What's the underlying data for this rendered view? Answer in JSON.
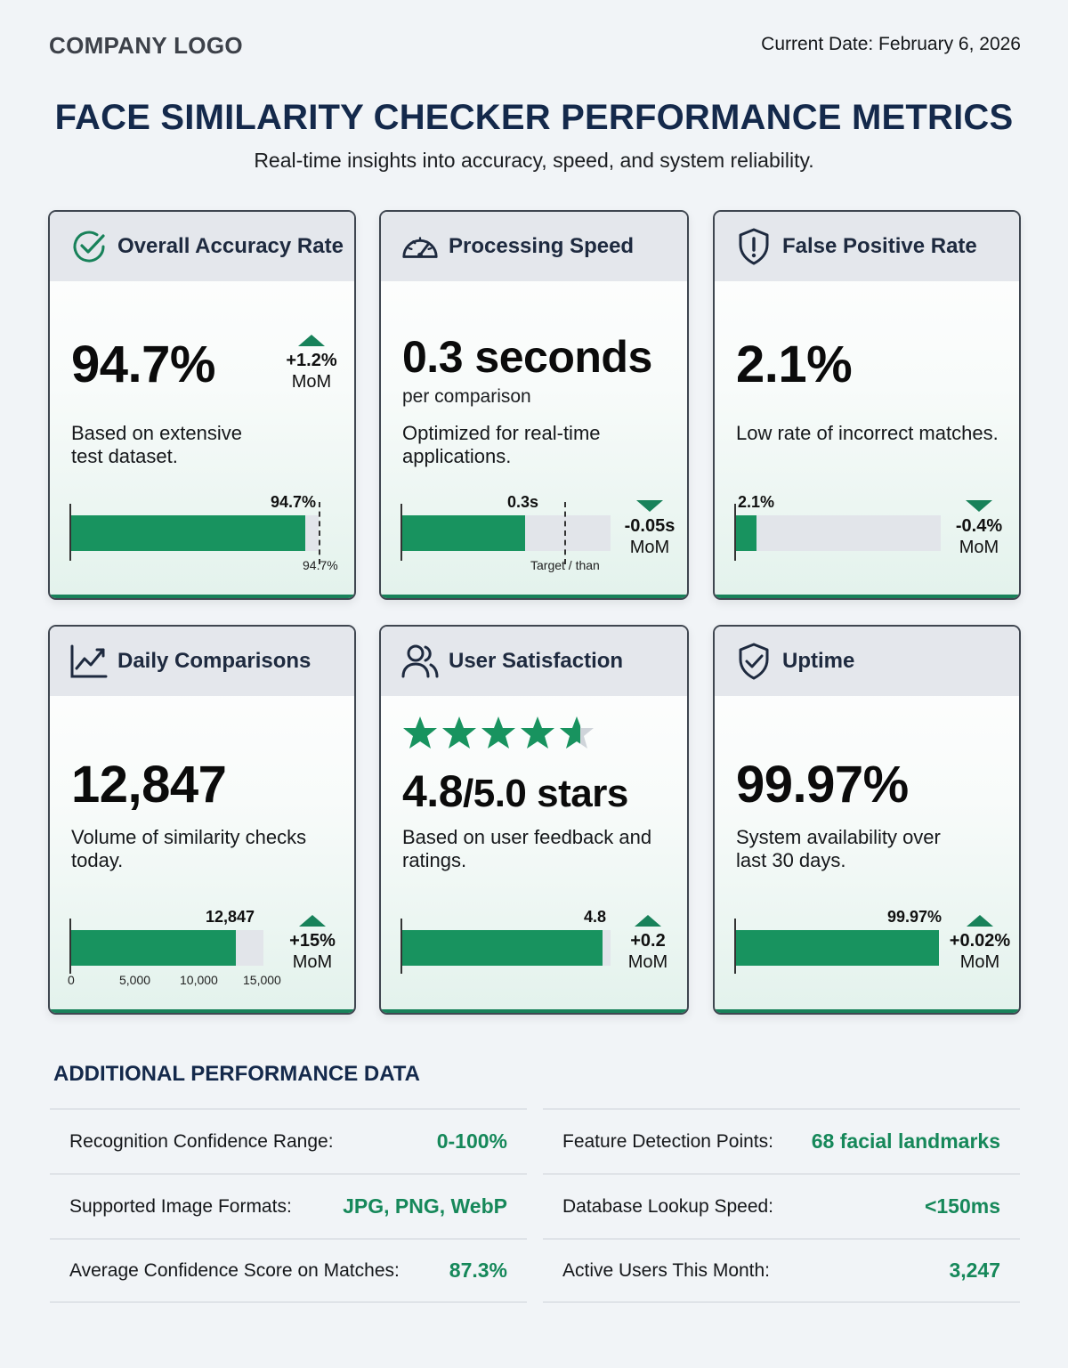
{
  "header": {
    "logo": "COMPANY LOGO",
    "date": "Current Date: February 6, 2026",
    "title": "FACE SIMILARITY CHECKER PERFORMANCE METRICS",
    "subtitle": "Real-time insights into accuracy, speed, and system reliability."
  },
  "colors": {
    "accent": "#18935f",
    "title": "#14294b",
    "header_bg": "#e4e7ec",
    "track": "#e2e5ea"
  },
  "cards": {
    "accuracy": {
      "label": "Overall Accuracy Rate",
      "icon": "check-circle-icon",
      "value": "94.7%",
      "delta": "+1.2%",
      "delta_unit": "MoM",
      "delta_dir": "up",
      "desc": "Based on extensive test dataset.",
      "bar_value": 94.7,
      "bar_max": 100,
      "bar_label": "94.7%",
      "target_label": "94.7%"
    },
    "speed": {
      "label": "Processing Speed",
      "icon": "speedometer-icon",
      "value": "0.3 seconds",
      "sub": "per comparison",
      "desc": "Optimized for real-time applications.",
      "delta": "-0.05s",
      "delta_unit": "MoM",
      "delta_dir": "down",
      "bar_value": 0.3,
      "bar_label": "0.3s",
      "target_label": "Target / than"
    },
    "false_positive": {
      "label": "False Positive Rate",
      "icon": "shield-alert-icon",
      "value": "2.1%",
      "desc": "Low rate of incorrect matches.",
      "delta": "-0.4%",
      "delta_unit": "MoM",
      "delta_dir": "down",
      "bar_value": 2.1,
      "bar_label": "2.1%"
    },
    "daily": {
      "label": "Daily Comparisons",
      "icon": "trend-chart-icon",
      "value": "12,847",
      "desc": "Volume of similarity checks today.",
      "delta": "+15%",
      "delta_unit": "MoM",
      "delta_dir": "up",
      "bar_value": 12847,
      "bar_max": 15000,
      "bar_label": "12,847",
      "ticks": [
        "0",
        "5,000",
        "10,000",
        "15,000"
      ]
    },
    "satisfaction": {
      "label": "User Satisfaction",
      "icon": "users-icon",
      "value_main": "4.8",
      "value_rest": "/5.0 stars",
      "rating": 4.8,
      "rating_max": 5,
      "desc": "Based on user feedback and ratings.",
      "delta": "+0.2",
      "delta_unit": "MoM",
      "delta_dir": "up",
      "bar_value": 4.8,
      "bar_max": 5,
      "bar_label": "4.8"
    },
    "uptime": {
      "label": "Uptime",
      "icon": "shield-check-icon",
      "value": "99.97%",
      "desc": "System availability over last 30 days.",
      "delta": "+0.02%",
      "delta_unit": "MoM",
      "delta_dir": "up",
      "bar_value": 99.97,
      "bar_max": 100,
      "bar_label": "99.97%"
    }
  },
  "additional": {
    "title": "ADDITIONAL PERFORMANCE DATA",
    "left": [
      {
        "k": "Recognition Confidence Range:",
        "v": "0-100%"
      },
      {
        "k": "Supported Image Formats:",
        "v": "JPG, PNG, WebP"
      },
      {
        "k": "Average Confidence Score on Matches:",
        "v": "87.3%"
      }
    ],
    "right": [
      {
        "k": "Feature Detection Points:",
        "v": "68 facial landmarks"
      },
      {
        "k": "Database Lookup Speed:",
        "v": "<150ms"
      },
      {
        "k": "Active Users This Month:",
        "v": "3,247"
      }
    ]
  }
}
